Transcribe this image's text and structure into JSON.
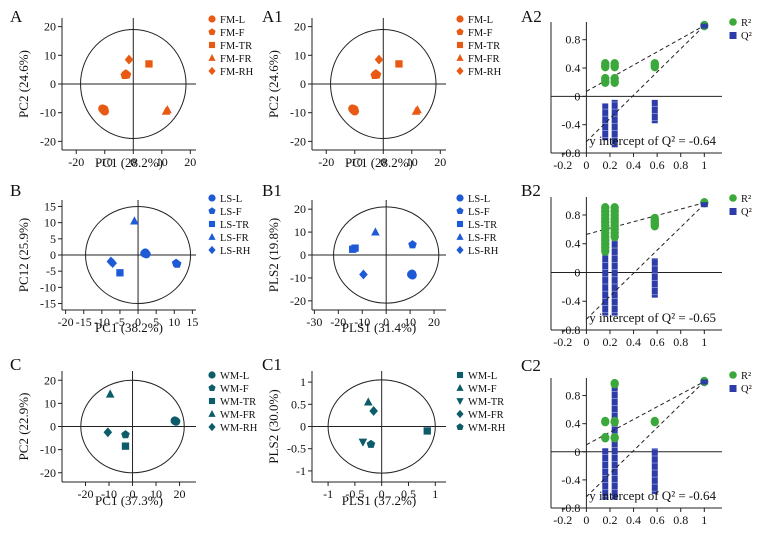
{
  "colors": {
    "FM": "#e85a14",
    "LS": "#1f5ad6",
    "WM": "#0c5c6a",
    "R2": "#3aa83a",
    "Q2": "#2d3ca8"
  },
  "chart_data": [
    {
      "id": "A",
      "type": "scatter",
      "label": "A",
      "family": "FM",
      "xlabel": "PC1 (28.2%)",
      "ylabel": "PC2 (24.6%)",
      "xlim": [
        -25,
        22
      ],
      "ylim": [
        -23,
        23
      ],
      "xticks": [
        -20,
        -10,
        0,
        10,
        20
      ],
      "yticks": [
        -20,
        -10,
        0,
        10,
        20
      ],
      "legend": [
        "FM-L",
        "FM-F",
        "FM-TR",
        "FM-FR",
        "FM-RH"
      ],
      "ellipse": {
        "rx": 18.5,
        "ry": 19
      },
      "series": [
        {
          "name": "FM-L",
          "marker": "circle",
          "points": [
            [
              -10.5,
              -9
            ],
            [
              -10,
              -9.5
            ],
            [
              -10.8,
              -8.6
            ],
            [
              -10.2,
              -8.8
            ]
          ]
        },
        {
          "name": "FM-F",
          "marker": "pentagon",
          "points": [
            [
              -3,
              3
            ],
            [
              -2.6,
              3.6
            ],
            [
              -2.2,
              3.2
            ]
          ]
        },
        {
          "name": "FM-TR",
          "marker": "square",
          "points": [
            [
              5.5,
              7
            ]
          ]
        },
        {
          "name": "FM-FR",
          "marker": "triangle",
          "points": [
            [
              11.5,
              -9.5
            ],
            [
              12,
              -9
            ]
          ]
        },
        {
          "name": "FM-RH",
          "marker": "diamond",
          "points": [
            [
              -1.5,
              8.5
            ]
          ]
        }
      ]
    },
    {
      "id": "A1",
      "type": "scatter",
      "label": "A1",
      "family": "FM",
      "xlabel": "PC1 (28.2%)",
      "ylabel": "PC2 (24.6%)",
      "xlim": [
        -25,
        22
      ],
      "ylim": [
        -23,
        23
      ],
      "xticks": [
        -20,
        -10,
        0,
        10,
        20
      ],
      "yticks": [
        -20,
        -10,
        0,
        10,
        20
      ],
      "legend": [
        "FM-L",
        "FM-F",
        "FM-TR",
        "FM-FR",
        "FM-RH"
      ],
      "ellipse": {
        "rx": 18.5,
        "ry": 19
      },
      "series": [
        {
          "name": "FM-L",
          "marker": "circle",
          "points": [
            [
              -10.5,
              -9
            ],
            [
              -10,
              -9.5
            ],
            [
              -10.8,
              -8.6
            ],
            [
              -10.2,
              -8.8
            ]
          ]
        },
        {
          "name": "FM-F",
          "marker": "pentagon",
          "points": [
            [
              -3,
              3
            ],
            [
              -2.6,
              3.6
            ],
            [
              -2.2,
              3.2
            ]
          ]
        },
        {
          "name": "FM-TR",
          "marker": "square",
          "points": [
            [
              5.5,
              7
            ]
          ]
        },
        {
          "name": "FM-FR",
          "marker": "triangle",
          "points": [
            [
              11.5,
              -9.5
            ],
            [
              12,
              -9
            ]
          ]
        },
        {
          "name": "FM-RH",
          "marker": "diamond",
          "points": [
            [
              -1.5,
              8.5
            ]
          ]
        }
      ]
    },
    {
      "id": "A2",
      "type": "permutation",
      "label": "A2",
      "xlim": [
        -0.3,
        1.15
      ],
      "ylim": [
        -0.8,
        1.05
      ],
      "xticks": [
        "-0.2",
        "0",
        "0.2",
        "0.4",
        "0.6",
        "0.8",
        "1"
      ],
      "yticks": [
        "-0.8",
        "-0.4",
        "0",
        "0.4",
        "0.8"
      ],
      "legend": [
        "R²",
        "Q²"
      ],
      "annotation": "y intercept of Q² = -0.64",
      "r2_intercept": 0.07,
      "q2_intercept": -0.64,
      "end": [
        1,
        1
      ],
      "r2_points": [
        [
          0.16,
          0.2
        ],
        [
          0.16,
          0.25
        ],
        [
          0.16,
          0.42
        ],
        [
          0.16,
          0.46
        ],
        [
          0.24,
          0.2
        ],
        [
          0.24,
          0.25
        ],
        [
          0.24,
          0.42
        ],
        [
          0.24,
          0.46
        ],
        [
          0.58,
          0.42
        ],
        [
          0.58,
          0.46
        ],
        [
          1,
          1
        ]
      ],
      "q2_bars": [
        {
          "x": 0.16,
          "from": -0.62,
          "to": -0.1
        },
        {
          "x": 0.24,
          "from": -0.72,
          "to": -0.05
        },
        {
          "x": 0.58,
          "from": -0.38,
          "to": -0.05
        }
      ],
      "q2_end": [
        1,
        1
      ]
    },
    {
      "id": "B",
      "type": "scatter",
      "label": "B",
      "family": "LS",
      "xlabel": "PC1 (38.2%)",
      "ylabel": "PC12 (25.9%)",
      "xlim": [
        -21,
        16
      ],
      "ylim": [
        -17,
        17
      ],
      "xticks": [
        -20,
        -15,
        -10,
        -5,
        0,
        5,
        10,
        15
      ],
      "yticks": [
        -15,
        -10,
        -5,
        0,
        5,
        10,
        15
      ],
      "legend": [
        "LS-L",
        "LS-F",
        "LS-TR",
        "LS-FR",
        "LS-RH"
      ],
      "ellipse": {
        "rx": 14.5,
        "ry": 15
      },
      "series": [
        {
          "name": "LS-L",
          "marker": "circle",
          "points": [
            [
              1.8,
              0.5
            ],
            [
              2.3,
              0.3
            ],
            [
              2,
              0.7
            ]
          ]
        },
        {
          "name": "LS-F",
          "marker": "pentagon",
          "points": [
            [
              10.5,
              -2.5
            ],
            [
              10.8,
              -2.8
            ]
          ]
        },
        {
          "name": "LS-TR",
          "marker": "square",
          "points": [
            [
              -5,
              -5.5
            ]
          ]
        },
        {
          "name": "LS-FR",
          "marker": "triangle",
          "points": [
            [
              -1,
              10.5
            ]
          ]
        },
        {
          "name": "LS-RH",
          "marker": "diamond",
          "points": [
            [
              -7.5,
              -2
            ],
            [
              -7,
              -2.5
            ]
          ]
        }
      ]
    },
    {
      "id": "B1",
      "type": "scatter",
      "label": "B1",
      "family": "LS",
      "xlabel": "PLS1 (31.4%)",
      "ylabel": "PLS2 (19.8%)",
      "xlim": [
        -31,
        25
      ],
      "ylim": [
        -24,
        24
      ],
      "xticks": [
        -30,
        -20,
        -10,
        0,
        10,
        20
      ],
      "yticks": [
        -20,
        -10,
        0,
        10,
        20
      ],
      "legend": [
        "LS-L",
        "LS-F",
        "LS-TR",
        "LS-FR",
        "LS-RH"
      ],
      "ellipse": {
        "rx": 22,
        "ry": 21
      },
      "series": [
        {
          "name": "LS-L",
          "marker": "circle",
          "points": [
            [
              10.5,
              -8.5
            ],
            [
              11,
              -8.8
            ],
            [
              10.8,
              -8.2
            ]
          ]
        },
        {
          "name": "LS-F",
          "marker": "pentagon",
          "points": [
            [
              11,
              4.5
            ]
          ]
        },
        {
          "name": "LS-TR",
          "marker": "square",
          "points": [
            [
              -14,
              2.5
            ],
            [
              -13,
              3
            ]
          ]
        },
        {
          "name": "LS-FR",
          "marker": "triangle",
          "points": [
            [
              -4.5,
              10
            ]
          ]
        },
        {
          "name": "LS-RH",
          "marker": "diamond",
          "points": [
            [
              -9.5,
              -8.5
            ]
          ]
        }
      ]
    },
    {
      "id": "B2",
      "type": "permutation",
      "label": "B2",
      "xlim": [
        -0.3,
        1.15
      ],
      "ylim": [
        -0.8,
        1.05
      ],
      "xticks": [
        "-0.2",
        "0",
        "0.2",
        "0.4",
        "0.6",
        "0.8",
        "1"
      ],
      "yticks": [
        "-0.8",
        "-0.4",
        "0",
        "0.4",
        "0.8"
      ],
      "legend": [
        "R²",
        "Q²"
      ],
      "annotation": "y intercept of Q² = -0.65",
      "r2_intercept": 0.53,
      "q2_intercept": -0.65,
      "end": [
        1,
        0.97
      ],
      "r2_points": [
        [
          0.16,
          0.9
        ],
        [
          0.16,
          0.85
        ],
        [
          0.16,
          0.8
        ],
        [
          0.16,
          0.75
        ],
        [
          0.16,
          0.7
        ],
        [
          0.16,
          0.65
        ],
        [
          0.16,
          0.6
        ],
        [
          0.16,
          0.55
        ],
        [
          0.16,
          0.5
        ],
        [
          0.16,
          0.45
        ],
        [
          0.16,
          0.4
        ],
        [
          0.16,
          0.35
        ],
        [
          0.16,
          0.3
        ],
        [
          0.24,
          0.9
        ],
        [
          0.24,
          0.85
        ],
        [
          0.24,
          0.8
        ],
        [
          0.24,
          0.75
        ],
        [
          0.24,
          0.7
        ],
        [
          0.24,
          0.65
        ],
        [
          0.24,
          0.6
        ],
        [
          0.24,
          0.55
        ],
        [
          0.24,
          0.5
        ],
        [
          0.58,
          0.75
        ],
        [
          0.58,
          0.72
        ],
        [
          0.58,
          0.68
        ],
        [
          0.58,
          0.65
        ],
        [
          1,
          0.97
        ]
      ],
      "q2_bars": [
        {
          "x": 0.16,
          "from": -0.6,
          "to": 0.9
        },
        {
          "x": 0.24,
          "from": -0.6,
          "to": 0.9
        },
        {
          "x": 0.58,
          "from": -0.35,
          "to": 0.2
        }
      ],
      "q2_end": [
        1,
        0.95
      ]
    },
    {
      "id": "C",
      "type": "scatter",
      "label": "C",
      "family": "WM",
      "xlabel": "PC1 (37.3%)",
      "ylabel": "PC2 (22.9%)",
      "xlim": [
        -30,
        27
      ],
      "ylim": [
        -24,
        24
      ],
      "xticks": [
        -20,
        -10,
        0,
        10,
        20
      ],
      "yticks": [
        -20,
        -10,
        0,
        10,
        20
      ],
      "legend": [
        "WM-L",
        "WM-F",
        "WM-TR",
        "WM-FR",
        "WM-RH"
      ],
      "ellipse": {
        "rx": 22,
        "ry": 20
      },
      "series": [
        {
          "name": "WM-L",
          "marker": "circle",
          "points": [
            [
              18,
              2.5
            ],
            [
              18.5,
              2.2
            ]
          ]
        },
        {
          "name": "WM-F",
          "marker": "pentagon",
          "points": [
            [
              -3,
              -3.5
            ]
          ]
        },
        {
          "name": "WM-TR",
          "marker": "square",
          "points": [
            [
              -3,
              -8.5
            ]
          ]
        },
        {
          "name": "WM-FR",
          "marker": "triangle",
          "points": [
            [
              -9.5,
              14
            ]
          ]
        },
        {
          "name": "WM-RH",
          "marker": "diamond",
          "points": [
            [
              -10.5,
              -2.5
            ]
          ]
        }
      ]
    },
    {
      "id": "C1",
      "type": "scatter",
      "label": "C1",
      "family": "WM",
      "xlabel": "PLS1 (37.2%)",
      "ylabel": "PLS2 (30.0%)",
      "xlim": [
        -1.3,
        1.2
      ],
      "ylim": [
        -1.25,
        1.25
      ],
      "xticks": [
        "-1",
        "-0.5",
        "0",
        "0.5",
        "1"
      ],
      "yticks": [
        "-1",
        "-0.5",
        "0",
        "0.5",
        "1"
      ],
      "legend": [
        "WM-L",
        "WM-F",
        "WM-TR",
        "WM-FR",
        "WM-RH"
      ],
      "ellipse": {
        "rx": 1.0,
        "ry": 1.05
      },
      "series": [
        {
          "name": "WM-L",
          "marker": "square",
          "points": [
            [
              0.85,
              -0.1
            ]
          ]
        },
        {
          "name": "WM-F",
          "marker": "triangle",
          "points": [
            [
              -0.25,
              0.55
            ]
          ]
        },
        {
          "name": "WM-TR",
          "marker": "triangle-down",
          "points": [
            [
              -0.35,
              -0.35
            ]
          ]
        },
        {
          "name": "WM-FR",
          "marker": "diamond",
          "points": [
            [
              -0.15,
              0.35
            ]
          ]
        },
        {
          "name": "WM-RH",
          "marker": "pentagon",
          "points": [
            [
              -0.2,
              -0.4
            ]
          ]
        }
      ]
    },
    {
      "id": "C2",
      "type": "permutation",
      "label": "C2",
      "xlim": [
        -0.3,
        1.15
      ],
      "ylim": [
        -0.8,
        1.05
      ],
      "xticks": [
        "-0.2",
        "0",
        "0.2",
        "0.4",
        "0.6",
        "0.8",
        "1"
      ],
      "yticks": [
        "-0.8",
        "-0.4",
        "0",
        "0.4",
        "0.8"
      ],
      "legend": [
        "R²",
        "Q²"
      ],
      "annotation": "y intercept of Q² = -0.64",
      "r2_intercept": 0.1,
      "q2_intercept": -0.64,
      "end": [
        1,
        1
      ],
      "r2_points": [
        [
          0.16,
          0.2
        ],
        [
          0.16,
          0.43
        ],
        [
          0.24,
          0.2
        ],
        [
          0.24,
          0.43
        ],
        [
          0.24,
          0.97
        ],
        [
          0.58,
          0.43
        ],
        [
          1,
          1
        ]
      ],
      "q2_bars": [
        {
          "x": 0.16,
          "from": -0.68,
          "to": 0.05
        },
        {
          "x": 0.24,
          "from": -0.68,
          "to": 0.93
        },
        {
          "x": 0.58,
          "from": -0.6,
          "to": 0.05
        }
      ],
      "q2_end": [
        1,
        1
      ]
    }
  ]
}
